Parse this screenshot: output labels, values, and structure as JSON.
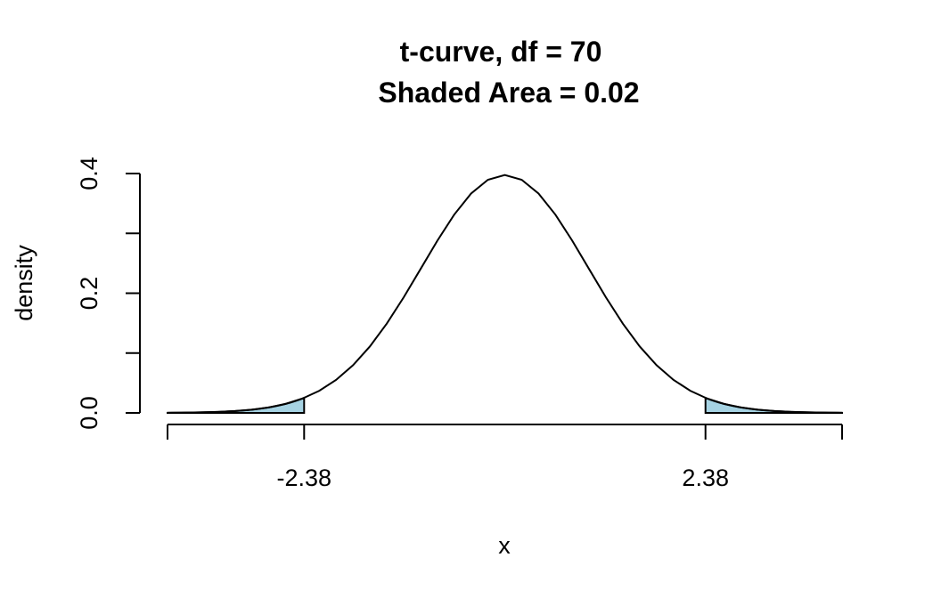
{
  "chart_data": {
    "type": "line",
    "title": "t-curve, df =  70",
    "subtitle": "Shaded Area =  0.02",
    "xlabel": "x",
    "ylabel": "density",
    "df": 70,
    "shaded_area": 0.02,
    "critical_values": [
      -2.38,
      2.38
    ],
    "x_tick_labels": [
      "-2.38",
      "2.38"
    ],
    "y_ticks": [
      0.0,
      0.1,
      0.2,
      0.3,
      0.4
    ],
    "y_tick_labels": [
      "0.0",
      "0.2",
      "0.4"
    ],
    "xlim": [
      -4,
      4
    ],
    "ylim": [
      0,
      0.4
    ],
    "grid": false,
    "shade_color": "#a6d3e3",
    "line_color": "#000000"
  }
}
